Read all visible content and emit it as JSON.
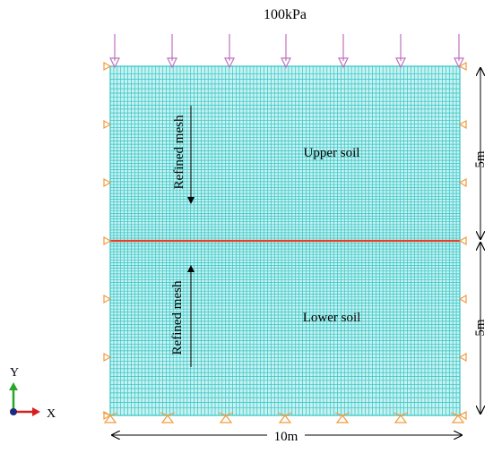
{
  "load_label": "100kPa",
  "upper_label": "Upper soil",
  "lower_label": "Lower soil",
  "refined_upper": "Refined mesh",
  "refined_lower": "Refined mesh",
  "dim_right_upper": "5m",
  "dim_right_lower": "5m",
  "dim_bottom": "10m",
  "axis_y": "Y",
  "axis_x": "X",
  "colors": {
    "mesh": "#2ec4c4",
    "mesh_bg": "#c8f1f1",
    "interface": "#e8402a",
    "load_arrow": "#c070c0",
    "boundary": "#f39a3c",
    "axis_y": "#2aa52a",
    "axis_x": "#d81e1e",
    "axis_origin": "#1a2a80"
  }
}
